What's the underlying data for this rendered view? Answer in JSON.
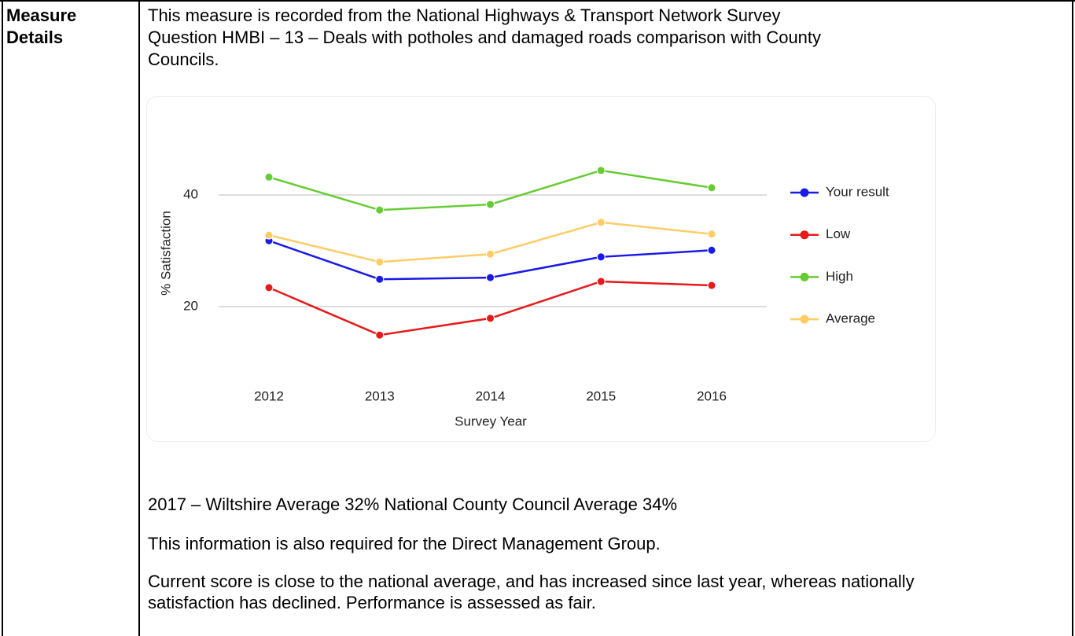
{
  "table": {
    "label_lines": [
      "Measure",
      "Details"
    ],
    "intro": [
      "This measure is recorded from the National Highways & Transport Network Survey",
      "Question HMBI – 13 – Deals with potholes and damaged roads comparison with County",
      "Councils."
    ],
    "paragraphs": [
      "2017 – Wiltshire Average 32% National County Council Average 34%",
      "This information is also required for the Direct Management Group.",
      "Current score is close to the national average, and has increased since last year, whereas nationally satisfaction has declined. Performance is assessed as fair."
    ]
  },
  "chart_data": {
    "type": "line",
    "x_label": "Survey Year",
    "y_label": "% Satisfaction",
    "categories": [
      "2012",
      "2013",
      "2014",
      "2015",
      "2016"
    ],
    "series": [
      {
        "name": "Your result",
        "color": "#1a1ae6",
        "values": [
          31.8,
          24.9,
          25.2,
          28.9,
          30.1
        ]
      },
      {
        "name": "Low",
        "color": "#e61a1a",
        "values": [
          23.4,
          14.9,
          17.9,
          24.5,
          23.8
        ]
      },
      {
        "name": "High",
        "color": "#66cc33",
        "values": [
          43.2,
          37.3,
          38.3,
          44.4,
          41.3
        ]
      },
      {
        "name": "Average",
        "color": "#ffcc66",
        "values": [
          32.8,
          28.0,
          29.4,
          35.1,
          33.0
        ]
      }
    ],
    "ylim": [
      10,
      50
    ],
    "yticks": [
      20,
      40
    ],
    "grid": true,
    "legend": "right"
  }
}
